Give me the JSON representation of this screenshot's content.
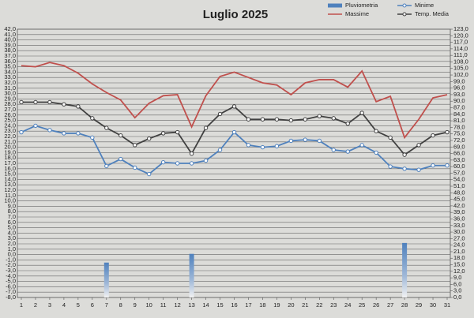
{
  "chart_data": {
    "type": "line",
    "title": "Luglio 2025",
    "x": [
      1,
      2,
      3,
      4,
      5,
      6,
      7,
      8,
      9,
      10,
      11,
      12,
      13,
      14,
      15,
      16,
      17,
      18,
      19,
      20,
      21,
      22,
      23,
      24,
      25,
      26,
      27,
      28,
      29,
      30,
      31
    ],
    "xlim": [
      1,
      31
    ],
    "series": [
      {
        "name": "Pluviometria",
        "type": "bar",
        "axis": "y2",
        "color": "#4f81bd",
        "markers": false,
        "values": [
          null,
          null,
          null,
          null,
          null,
          null,
          16,
          null,
          null,
          null,
          null,
          null,
          20,
          null,
          null,
          null,
          null,
          null,
          null,
          null,
          null,
          null,
          null,
          null,
          null,
          null,
          null,
          25,
          null,
          null,
          null
        ]
      },
      {
        "name": "Minime",
        "type": "line",
        "color": "#4f81bd",
        "markers": true,
        "values": [
          22.8,
          24.0,
          23.2,
          22.6,
          22.6,
          21.8,
          16.5,
          17.8,
          16.2,
          15.0,
          17.2,
          17.0,
          17.0,
          17.5,
          19.5,
          22.8,
          20.4,
          20.0,
          20.2,
          21.2,
          21.4,
          21.2,
          19.5,
          19.2,
          20.4,
          19.0,
          16.4,
          16.0,
          15.8,
          16.6,
          16.6
        ]
      },
      {
        "name": "Massime",
        "type": "line",
        "color": "#c0504d",
        "markers": false,
        "values": [
          35.2,
          35.0,
          35.8,
          35.2,
          33.8,
          31.8,
          30.2,
          28.8,
          25.5,
          28.2,
          29.6,
          29.8,
          23.8,
          29.6,
          33.2,
          34.0,
          33.0,
          32.0,
          31.6,
          29.8,
          32.0,
          32.6,
          32.6,
          31.2,
          34.2,
          28.5,
          29.5,
          21.8,
          25.2,
          29.2,
          29.8
        ]
      },
      {
        "name": "Temp. Media",
        "type": "line",
        "color": "#404040",
        "markers": true,
        "values": [
          28.4,
          28.4,
          28.4,
          28.0,
          27.6,
          25.4,
          23.6,
          22.2,
          20.4,
          21.6,
          22.6,
          22.8,
          18.8,
          23.6,
          26.2,
          27.6,
          25.2,
          25.2,
          25.2,
          25.0,
          25.2,
          25.8,
          25.4,
          24.4,
          26.4,
          23.0,
          21.8,
          18.6,
          20.4,
          22.2,
          22.8
        ]
      }
    ],
    "ylim": [
      -8,
      42
    ],
    "yticks": [
      {
        "value": 42,
        "label": "42,0"
      },
      {
        "value": 41,
        "label": "41,0"
      },
      {
        "value": 40,
        "label": "40,0"
      },
      {
        "value": 39,
        "label": "39,0"
      },
      {
        "value": 38,
        "label": "38,0"
      },
      {
        "value": 37,
        "label": "37,0"
      },
      {
        "value": 36,
        "label": "36,0"
      },
      {
        "value": 35,
        "label": "35,0"
      },
      {
        "value": 34,
        "label": "34,0"
      },
      {
        "value": 33,
        "label": "33,0"
      },
      {
        "value": 32,
        "label": "32,0"
      },
      {
        "value": 31,
        "label": "31,0"
      },
      {
        "value": 30,
        "label": "30,0"
      },
      {
        "value": 29,
        "label": "29,0"
      },
      {
        "value": 28,
        "label": "28,0"
      },
      {
        "value": 27,
        "label": "27,0"
      },
      {
        "value": 26,
        "label": "26,0"
      },
      {
        "value": 25,
        "label": "25,0"
      },
      {
        "value": 24,
        "label": "24,0"
      },
      {
        "value": 23,
        "label": "23,0"
      },
      {
        "value": 22,
        "label": "22,0"
      },
      {
        "value": 21,
        "label": "21,0"
      },
      {
        "value": 20,
        "label": "20,0"
      },
      {
        "value": 19,
        "label": "19,0"
      },
      {
        "value": 18,
        "label": "18,0"
      },
      {
        "value": 17,
        "label": "17,0"
      },
      {
        "value": 16,
        "label": "16,0"
      },
      {
        "value": 15,
        "label": "15,0"
      },
      {
        "value": 14,
        "label": "14,0"
      },
      {
        "value": 13,
        "label": "13,0"
      },
      {
        "value": 12,
        "label": "12,0"
      },
      {
        "value": 11,
        "label": "11,0"
      },
      {
        "value": 10,
        "label": "10,0"
      },
      {
        "value": 9,
        "label": "9,0"
      },
      {
        "value": 8,
        "label": "8,0"
      },
      {
        "value": 7,
        "label": "7,0"
      },
      {
        "value": 6,
        "label": "6,0"
      },
      {
        "value": 5,
        "label": "5,0"
      },
      {
        "value": 4,
        "label": "4,0"
      },
      {
        "value": 3,
        "label": "3,0"
      },
      {
        "value": 2,
        "label": "2,0"
      },
      {
        "value": 1,
        "label": "1,0"
      },
      {
        "value": 0,
        "label": "0,0"
      },
      {
        "value": -1,
        "label": "-1,0"
      },
      {
        "value": -2,
        "label": "-2,0"
      },
      {
        "value": -3,
        "label": "-3,0"
      },
      {
        "value": -4,
        "label": "-4,0"
      },
      {
        "value": -5,
        "label": "-5,0"
      },
      {
        "value": -6,
        "label": "-6,0"
      },
      {
        "value": -7,
        "label": "-7,0"
      },
      {
        "value": -8,
        "label": "-8,0"
      }
    ],
    "y2lim": [
      0,
      123
    ],
    "y2ticks": [
      {
        "value": 123,
        "label": "123,0"
      },
      {
        "value": 120,
        "label": "120,0"
      },
      {
        "value": 117,
        "label": "117,0"
      },
      {
        "value": 114,
        "label": "114,0"
      },
      {
        "value": 111,
        "label": "111,0"
      },
      {
        "value": 108,
        "label": "108,0"
      },
      {
        "value": 105,
        "label": "105,0"
      },
      {
        "value": 102,
        "label": "102,0"
      },
      {
        "value": 99,
        "label": "99,0"
      },
      {
        "value": 96,
        "label": "96,0"
      },
      {
        "value": 93,
        "label": "93,0"
      },
      {
        "value": 90,
        "label": "90,0"
      },
      {
        "value": 87,
        "label": "87,0"
      },
      {
        "value": 84,
        "label": "84,0"
      },
      {
        "value": 81,
        "label": "81,0"
      },
      {
        "value": 78,
        "label": "78,0"
      },
      {
        "value": 75,
        "label": "75,0"
      },
      {
        "value": 72,
        "label": "72,0"
      },
      {
        "value": 69,
        "label": "69,0"
      },
      {
        "value": 66,
        "label": "66,0"
      },
      {
        "value": 63,
        "label": "63,0"
      },
      {
        "value": 60,
        "label": "60,0"
      },
      {
        "value": 57,
        "label": "57,0"
      },
      {
        "value": 54,
        "label": "54,0"
      },
      {
        "value": 51,
        "label": "51,0"
      },
      {
        "value": 48,
        "label": "48,0"
      },
      {
        "value": 45,
        "label": "45,0"
      },
      {
        "value": 42,
        "label": "42,0"
      },
      {
        "value": 39,
        "label": "39,0"
      },
      {
        "value": 36,
        "label": "36,0"
      },
      {
        "value": 33,
        "label": "33,0"
      },
      {
        "value": 30,
        "label": "30,0"
      },
      {
        "value": 27,
        "label": "27,0"
      },
      {
        "value": 24,
        "label": "24,0"
      },
      {
        "value": 21,
        "label": "21,0"
      },
      {
        "value": 18,
        "label": "18,0"
      },
      {
        "value": 15,
        "label": "15,0"
      },
      {
        "value": 12,
        "label": "12,0"
      },
      {
        "value": 9,
        "label": "9,0"
      },
      {
        "value": 6,
        "label": "6,0"
      },
      {
        "value": 3,
        "label": "3,0"
      },
      {
        "value": 0,
        "label": "0,0"
      }
    ],
    "grid": true,
    "legend": "top-right"
  }
}
